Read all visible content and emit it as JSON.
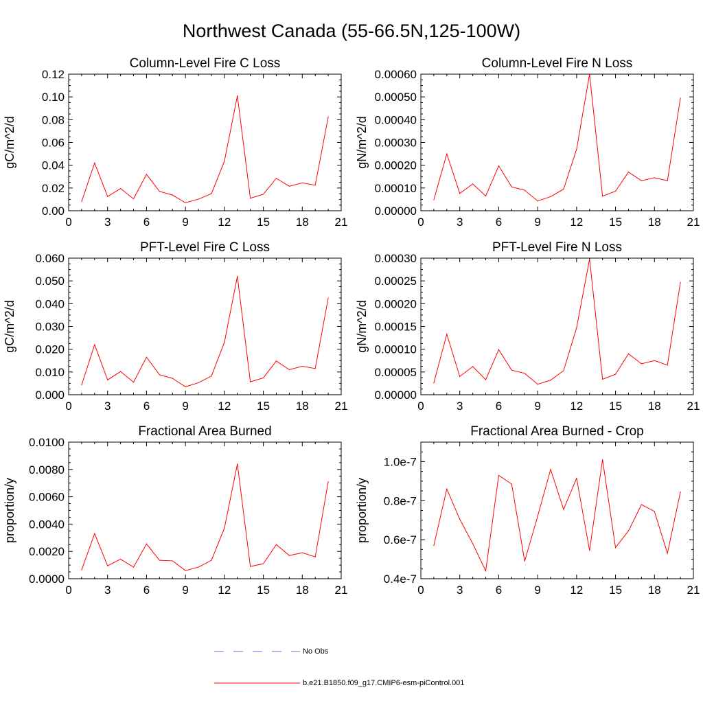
{
  "title": "Northwest Canada (55-66.5N,125-100W)",
  "colors": {
    "series": "#ff0000",
    "obs": "#6a6ad8",
    "axis": "#000000"
  },
  "legend": [
    {
      "label": "No Obs",
      "style": "dashed",
      "color": "#6a6ad8"
    },
    {
      "label": "b.e21.B1850.f09_g17.CMIP6-esm-piControl.001",
      "style": "solid",
      "color": "#ff0000"
    }
  ],
  "chart_data": [
    {
      "type": "line",
      "title": "Column-Level Fire C Loss",
      "ylabel": "gC/m^2/d",
      "xlim": [
        0,
        21
      ],
      "xticks": [
        0,
        3,
        6,
        9,
        12,
        15,
        18,
        21
      ],
      "ylim": [
        0,
        0.12
      ],
      "yticks": [
        0,
        0.02,
        0.04,
        0.06,
        0.08,
        0.1,
        0.12
      ],
      "ytick_labels": [
        "0.00",
        "0.02",
        "0.04",
        "0.06",
        "0.08",
        "0.10",
        "0.12"
      ],
      "x": [
        1,
        2,
        3,
        4,
        5,
        6,
        7,
        8,
        9,
        10,
        11,
        12,
        13,
        14,
        15,
        16,
        17,
        18,
        19,
        20
      ],
      "series": [
        {
          "name": "b.e21.B1850.f09_g17.CMIP6-esm-piControl.001",
          "values": [
            0.008,
            0.042,
            0.0125,
            0.0195,
            0.0105,
            0.032,
            0.017,
            0.0138,
            0.007,
            0.0102,
            0.015,
            0.0435,
            0.101,
            0.011,
            0.0145,
            0.0285,
            0.0215,
            0.0245,
            0.0225,
            0.0825
          ]
        }
      ]
    },
    {
      "type": "line",
      "title": "Column-Level Fire N Loss",
      "ylabel": "gN/m^2/d",
      "xlim": [
        0,
        21
      ],
      "xticks": [
        0,
        3,
        6,
        9,
        12,
        15,
        18,
        21
      ],
      "ylim": [
        0,
        0.0006
      ],
      "yticks": [
        0,
        0.0001,
        0.0002,
        0.0003,
        0.0004,
        0.0005,
        0.0006
      ],
      "ytick_labels": [
        "0.00000",
        "0.00010",
        "0.00020",
        "0.00030",
        "0.00040",
        "0.00050",
        "0.00060"
      ],
      "x": [
        1,
        2,
        3,
        4,
        5,
        6,
        7,
        8,
        9,
        10,
        11,
        12,
        13,
        14,
        15,
        16,
        17,
        18,
        19,
        20
      ],
      "series": [
        {
          "name": "b.e21.B1850.f09_g17.CMIP6-esm-piControl.001",
          "values": [
            4.8e-05,
            0.00025,
            7.6e-05,
            0.000118,
            6.5e-05,
            0.000197,
            0.000105,
            9e-05,
            4.3e-05,
            6.2e-05,
            9.5e-05,
            0.00027,
            0.0006,
            6.4e-05,
            8.6e-05,
            0.00017,
            0.000132,
            0.000145,
            0.000132,
            0.000495
          ]
        }
      ]
    },
    {
      "type": "line",
      "title": "PFT-Level Fire C Loss",
      "ylabel": "gC/m^2/d",
      "xlim": [
        0,
        21
      ],
      "xticks": [
        0,
        3,
        6,
        9,
        12,
        15,
        18,
        21
      ],
      "ylim": [
        0,
        0.06
      ],
      "yticks": [
        0,
        0.01,
        0.02,
        0.03,
        0.04,
        0.05,
        0.06
      ],
      "ytick_labels": [
        "0.000",
        "0.010",
        "0.020",
        "0.030",
        "0.040",
        "0.050",
        "0.060"
      ],
      "x": [
        1,
        2,
        3,
        4,
        5,
        6,
        7,
        8,
        9,
        10,
        11,
        12,
        13,
        14,
        15,
        16,
        17,
        18,
        19,
        20
      ],
      "series": [
        {
          "name": "b.e21.B1850.f09_g17.CMIP6-esm-piControl.001",
          "values": [
            0.0043,
            0.022,
            0.0065,
            0.0102,
            0.0055,
            0.0165,
            0.0088,
            0.0072,
            0.0035,
            0.0053,
            0.0082,
            0.023,
            0.052,
            0.0057,
            0.0074,
            0.0148,
            0.011,
            0.0125,
            0.0115,
            0.0425
          ]
        }
      ]
    },
    {
      "type": "line",
      "title": "PFT-Level Fire N Loss",
      "ylabel": "gN/m^2/d",
      "xlim": [
        0,
        21
      ],
      "xticks": [
        0,
        3,
        6,
        9,
        12,
        15,
        18,
        21
      ],
      "ylim": [
        0,
        0.0003
      ],
      "yticks": [
        0,
        5e-05,
        0.0001,
        0.00015,
        0.0002,
        0.00025,
        0.0003
      ],
      "ytick_labels": [
        "0.00000",
        "0.00005",
        "0.00010",
        "0.00015",
        "0.00020",
        "0.00025",
        "0.00030"
      ],
      "x": [
        1,
        2,
        3,
        4,
        5,
        6,
        7,
        8,
        9,
        10,
        11,
        12,
        13,
        14,
        15,
        16,
        17,
        18,
        19,
        20
      ],
      "series": [
        {
          "name": "b.e21.B1850.f09_g17.CMIP6-esm-piControl.001",
          "values": [
            2.6e-05,
            0.000133,
            4e-05,
            6.2e-05,
            3.3e-05,
            9.9e-05,
            5.4e-05,
            4.7e-05,
            2.3e-05,
            3.2e-05,
            5.3e-05,
            0.000147,
            0.000298,
            3.4e-05,
            4.5e-05,
            9e-05,
            6.8e-05,
            7.5e-05,
            6.5e-05,
            0.000247
          ]
        }
      ]
    },
    {
      "type": "line",
      "title": "Fractional Area Burned",
      "ylabel": "proportion/y",
      "xlim": [
        0,
        21
      ],
      "xticks": [
        0,
        3,
        6,
        9,
        12,
        15,
        18,
        21
      ],
      "ylim": [
        0,
        0.01
      ],
      "yticks": [
        0,
        0.002,
        0.004,
        0.006,
        0.008,
        0.01
      ],
      "ytick_labels": [
        "0.0000",
        "0.0020",
        "0.0040",
        "0.0060",
        "0.0080",
        "0.0100"
      ],
      "x": [
        1,
        2,
        3,
        4,
        5,
        6,
        7,
        8,
        9,
        10,
        11,
        12,
        13,
        14,
        15,
        16,
        17,
        18,
        19,
        20
      ],
      "series": [
        {
          "name": "b.e21.B1850.f09_g17.CMIP6-esm-piControl.001",
          "values": [
            0.00065,
            0.0033,
            0.00095,
            0.00143,
            0.00085,
            0.00255,
            0.00135,
            0.00131,
            0.0006,
            0.00085,
            0.00135,
            0.0037,
            0.0084,
            0.0009,
            0.0011,
            0.0025,
            0.0017,
            0.0019,
            0.0016,
            0.0071
          ]
        }
      ]
    },
    {
      "type": "line",
      "title": "Fractional Area Burned - Crop",
      "ylabel": "proportion/y",
      "xlim": [
        0,
        21
      ],
      "xticks": [
        0,
        3,
        6,
        9,
        12,
        15,
        18,
        21
      ],
      "ylim": [
        4e-08,
        1.1e-07
      ],
      "yticks": [
        4e-08,
        6e-08,
        8e-08,
        1e-07
      ],
      "ytick_labels": [
        "0.4e-7",
        "0.6e-7",
        "0.8e-7",
        "1.0e-7"
      ],
      "x": [
        1,
        2,
        3,
        4,
        5,
        6,
        7,
        8,
        9,
        10,
        11,
        12,
        13,
        14,
        15,
        16,
        17,
        18,
        19,
        20
      ],
      "series": [
        {
          "name": "b.e21.B1850.f09_g17.CMIP6-esm-piControl.001",
          "values": [
            5.7e-08,
            8.6e-08,
            7.05e-08,
            5.8e-08,
            4.4e-08,
            9.3e-08,
            8.85e-08,
            4.9e-08,
            7.2e-08,
            9.6e-08,
            7.55e-08,
            9.15e-08,
            5.45e-08,
            1.01e-07,
            5.6e-08,
            6.45e-08,
            7.8e-08,
            7.45e-08,
            5.3e-08,
            8.45e-08
          ]
        }
      ]
    }
  ]
}
